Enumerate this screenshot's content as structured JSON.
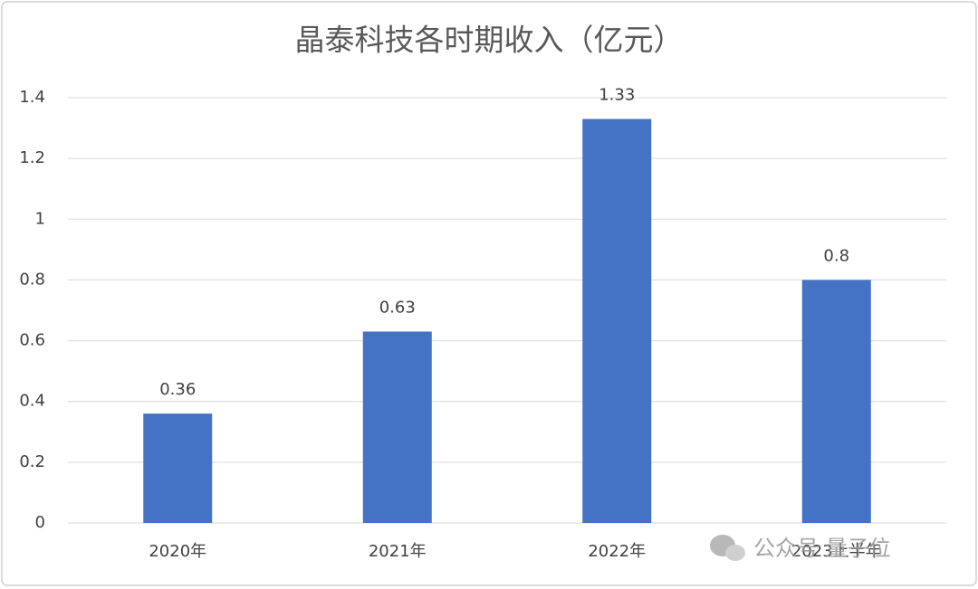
{
  "chart_data": {
    "type": "bar",
    "title": "晶泰科技各时期收入（亿元）",
    "categories": [
      "2020年",
      "2021年",
      "2022年",
      "2023上半年"
    ],
    "values": [
      0.36,
      0.63,
      1.33,
      0.8
    ],
    "color": "#4472c4",
    "ylim": [
      0,
      1.4
    ],
    "yticks": [
      0,
      0.2,
      0.4,
      0.6,
      0.8,
      1,
      1.2,
      1.4
    ],
    "grid": true,
    "watermark": "公众号 量子位"
  }
}
